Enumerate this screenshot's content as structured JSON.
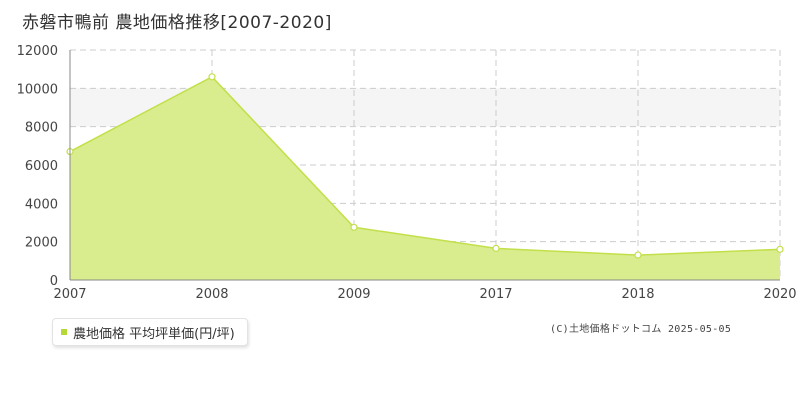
{
  "title": "赤磐市鴨前 農地価格推移[2007-2020]",
  "legend": {
    "label": "農地価格 平均坪単価(円/坪)"
  },
  "credit": "(C)土地価格ドットコム 2025-05-05",
  "colors": {
    "area_fill": "#d9ec8e",
    "area_line": "#c2e04a",
    "marker_fill": "#ffffff",
    "grid": "#cccccc",
    "band": "#f5f5f5",
    "axis": "#888888",
    "tick_text": "#444444",
    "legend_swatch": "#b5d934"
  },
  "chart_data": {
    "type": "area",
    "title": "赤磐市鴨前 農地価格推移[2007-2020]",
    "xlabel": "",
    "ylabel": "",
    "categories": [
      "2007",
      "2008",
      "2009",
      "2017",
      "2018",
      "2020"
    ],
    "series": [
      {
        "name": "農地価格 平均坪単価(円/坪)",
        "values": [
          6700,
          10600,
          2750,
          1650,
          1300,
          1600
        ]
      }
    ],
    "ylim": [
      0,
      12000
    ],
    "yticks": [
      "0",
      "2000",
      "4000",
      "6000",
      "8000",
      "10000",
      "12000"
    ],
    "grid": true,
    "legend_position": "bottom-left"
  }
}
